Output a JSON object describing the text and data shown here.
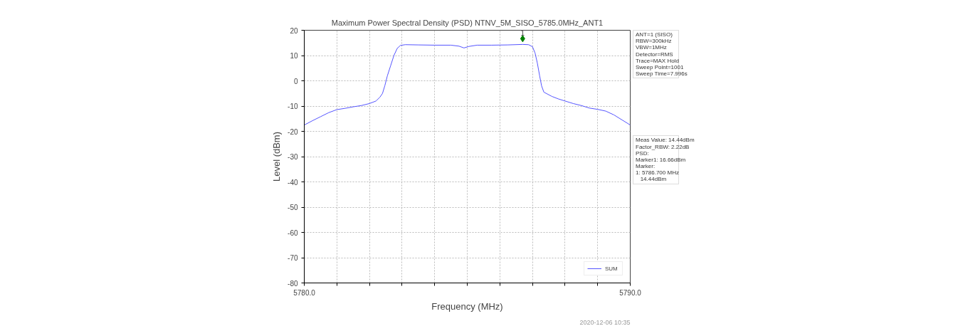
{
  "chart_data": {
    "type": "line",
    "title": "Maximum Power Spectral Density (PSD) NTNV_5M_SISO_5785.0MHz_ANT1",
    "xlabel": "Frequency (MHz)",
    "ylabel": "Level (dBm)",
    "xlim": [
      5780,
      5790
    ],
    "xticks": [
      {
        "value": 5780,
        "label": "5780.0"
      },
      {
        "value": 5781,
        "label": null
      },
      {
        "value": 5782,
        "label": null
      },
      {
        "value": 5783,
        "label": null
      },
      {
        "value": 5784,
        "label": null
      },
      {
        "value": 5785,
        "label": null
      },
      {
        "value": 5786,
        "label": null
      },
      {
        "value": 5787,
        "label": null
      },
      {
        "value": 5788,
        "label": null
      },
      {
        "value": 5789,
        "label": null
      },
      {
        "value": 5790,
        "label": "5790.0"
      }
    ],
    "ylim": [
      -80,
      20
    ],
    "yticks": [
      -80,
      -70,
      -60,
      -50,
      -40,
      -30,
      -20,
      -10,
      0,
      10,
      20
    ],
    "grid": true,
    "legend": "bottom right",
    "series": [
      {
        "name": "SUM",
        "color": "#5555ff",
        "type": "line",
        "x": [
          5780,
          5780.25,
          5780.5,
          5780.75,
          5781,
          5781.25,
          5781.5,
          5781.75,
          5782,
          5782.2,
          5782.32,
          5782.4,
          5782.47,
          5782.55,
          5782.65,
          5782.75,
          5782.85,
          5782.95,
          5783.1,
          5783.5,
          5784,
          5784.5,
          5784.75,
          5784.9,
          5785.05,
          5785.3,
          5785.75,
          5786.25,
          5786.7,
          5786.88,
          5787.0,
          5787.08,
          5787.15,
          5787.22,
          5787.28,
          5787.35,
          5787.6,
          5787.8,
          5788,
          5788.25,
          5788.5,
          5788.75,
          5789,
          5789.25,
          5789.5,
          5789.75,
          5790
        ],
        "values": [
          -17.5,
          -15.8,
          -14.2,
          -12.6,
          -11.4,
          -10.9,
          -10.3,
          -9.8,
          -9.0,
          -8.0,
          -6.5,
          -5.0,
          -2.0,
          2.0,
          6.0,
          10.0,
          12.8,
          14.0,
          14.3,
          14.2,
          14.1,
          14.1,
          13.7,
          13.0,
          13.6,
          14.1,
          14.1,
          14.2,
          14.4,
          14.3,
          13.5,
          11.0,
          7.0,
          2.0,
          -2.0,
          -4.5,
          -6.2,
          -7.2,
          -8.0,
          -9.0,
          -9.8,
          -10.8,
          -11.3,
          -12.0,
          -13.5,
          -15.5,
          -17.5
        ]
      },
      {
        "color": "#008000",
        "type": "scatter",
        "marker": "diamond",
        "x": [
          5786.7
        ],
        "values": [
          16.66
        ]
      }
    ],
    "annotations": [
      {
        "text": "1",
        "x": 5786.7,
        "y": 16.66
      },
      "ANT=1 (SISO)\nRBW=300kHz\nVBW=1MHz\nDetector=RMS\nTrace=MAX Hold\nSweep Point=1001\nSweep Time=7.996s",
      "Meas Value: 14.44dBm\nFactor_RBW: 2.22dB\nPSD:\nMarker1: 16.66dBm\nMarker:\n1: 5786.700 MHz\n   14.44dBm",
      "2020-12-06 10:35"
    ]
  }
}
